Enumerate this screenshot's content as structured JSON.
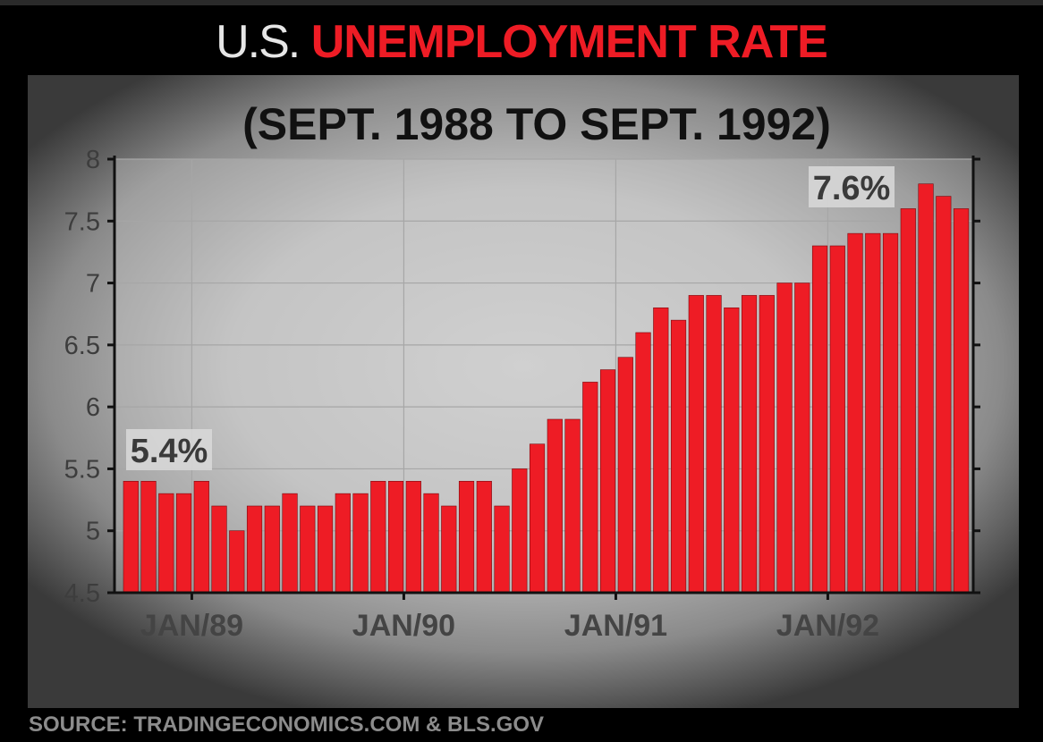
{
  "header": {
    "prefix": "U.S.",
    "title": "UNEMPLOYMENT RATE"
  },
  "chart_data": {
    "type": "bar",
    "subtitle": "(SEPT. 1988 TO SEPT. 1992)",
    "xlabel": "",
    "ylabel": "",
    "ylim": [
      4.5,
      8
    ],
    "yticks": [
      "4.5",
      "5",
      "5.5",
      "6",
      "6.5",
      "7",
      "7.5",
      "8"
    ],
    "xtick_labels": [
      {
        "label": "JAN/89",
        "index": 4
      },
      {
        "label": "JAN/90",
        "index": 16
      },
      {
        "label": "JAN/91",
        "index": 28
      },
      {
        "label": "JAN/92",
        "index": 40
      }
    ],
    "grid": true,
    "bar_color": "#ee1c25",
    "values": [
      5.4,
      5.4,
      5.3,
      5.3,
      5.4,
      5.2,
      5.0,
      5.2,
      5.2,
      5.3,
      5.2,
      5.2,
      5.3,
      5.3,
      5.4,
      5.4,
      5.4,
      5.3,
      5.2,
      5.4,
      5.4,
      5.2,
      5.5,
      5.7,
      5.9,
      5.9,
      6.2,
      6.3,
      6.4,
      6.6,
      6.8,
      6.7,
      6.9,
      6.9,
      6.8,
      6.9,
      6.9,
      7.0,
      7.0,
      7.3,
      7.3,
      7.4,
      7.4,
      7.4,
      7.6,
      7.8,
      7.7,
      7.6
    ],
    "annotations": [
      {
        "text": "5.4%",
        "index": 0
      },
      {
        "text": "7.6%",
        "index": 47
      }
    ]
  },
  "source": "SOURCE: TRADINGECONOMICS.COM & BLS.GOV"
}
